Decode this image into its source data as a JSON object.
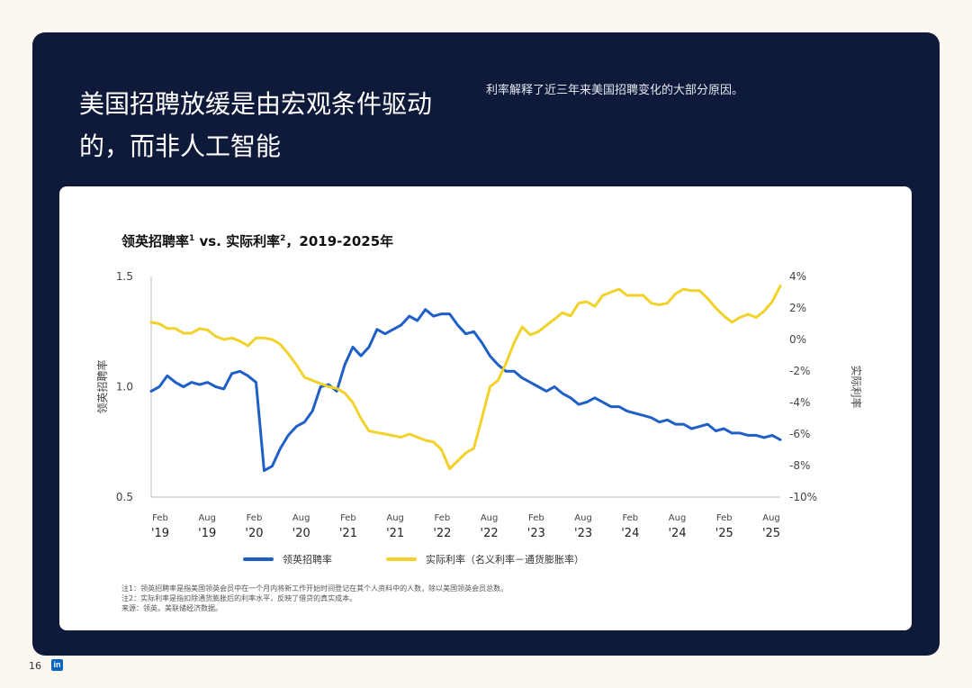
{
  "header": {
    "headline": "美国招聘放缓是由宏观条件驱动的，而非人工智能",
    "subhead": "利率解释了近三年来美国招聘变化的大部分原因。"
  },
  "footer": {
    "page_number": "16",
    "logo_text": "in",
    "note1": "注1：领英招聘率是指美国领英会员中在一个月内将新工作开始时间登记在其个人资料中的人数，除以美国领英会员总数。",
    "note2": "注2：实际利率是指扣除通货膨胀后的利率水平，反映了借贷的真实成本。",
    "source": "来源：领英，美联储经济数据。"
  },
  "chart_data": {
    "type": "line",
    "title": "领英招聘率",
    "title_sup1": "1",
    "title_mid": " vs. 实际利率",
    "title_sup2": "2",
    "title_tail": "，2019-2025年",
    "left_axis": {
      "label": "领英招聘率",
      "ylim": [
        0.5,
        1.5
      ],
      "ticks": [
        "1.5",
        "1.0",
        "0.5"
      ]
    },
    "right_axis": {
      "label": "实际利率",
      "ylim": [
        -10,
        4
      ],
      "ticks": [
        "4%",
        "2%",
        "0%",
        "-2%",
        "-4%",
        "-6%",
        "-8%",
        "-10%"
      ]
    },
    "x_ticks": [
      {
        "month": "Feb",
        "year": "'19"
      },
      {
        "month": "Aug",
        "year": "'19"
      },
      {
        "month": "Feb",
        "year": "'20"
      },
      {
        "month": "Aug",
        "year": "'20"
      },
      {
        "month": "Feb",
        "year": "'21"
      },
      {
        "month": "Aug",
        "year": "'21"
      },
      {
        "month": "Feb",
        "year": "'22"
      },
      {
        "month": "Aug",
        "year": "'22"
      },
      {
        "month": "Feb",
        "year": "'23"
      },
      {
        "month": "Aug",
        "year": "'23"
      },
      {
        "month": "Feb",
        "year": "'24"
      },
      {
        "month": "Aug",
        "year": "'24"
      },
      {
        "month": "Feb",
        "year": "'25"
      },
      {
        "month": "Aug",
        "year": "'25"
      }
    ],
    "series": [
      {
        "name": "领英招聘率",
        "color": "#1f5fc6",
        "axis": "left",
        "values": [
          0.98,
          1.0,
          1.05,
          1.02,
          1.0,
          1.02,
          1.01,
          1.02,
          1.0,
          0.99,
          1.06,
          1.07,
          1.05,
          1.02,
          0.62,
          0.64,
          0.72,
          0.78,
          0.82,
          0.84,
          0.89,
          1.0,
          1.01,
          0.98,
          1.1,
          1.18,
          1.14,
          1.18,
          1.26,
          1.24,
          1.26,
          1.28,
          1.32,
          1.3,
          1.35,
          1.32,
          1.33,
          1.33,
          1.28,
          1.24,
          1.25,
          1.2,
          1.14,
          1.1,
          1.07,
          1.07,
          1.04,
          1.02,
          1.0,
          0.98,
          1.0,
          0.97,
          0.95,
          0.92,
          0.93,
          0.95,
          0.93,
          0.91,
          0.91,
          0.89,
          0.88,
          0.87,
          0.86,
          0.84,
          0.85,
          0.83,
          0.83,
          0.81,
          0.82,
          0.83,
          0.8,
          0.81,
          0.79,
          0.79,
          0.78,
          0.78,
          0.77,
          0.78,
          0.76
        ]
      },
      {
        "name": "实际利率（名义利率－通货膨胀率）",
        "color": "#f2d12a",
        "axis": "right",
        "values": [
          1.1,
          1.0,
          0.7,
          0.7,
          0.4,
          0.4,
          0.7,
          0.6,
          0.2,
          0.0,
          0.1,
          -0.1,
          -0.4,
          0.1,
          0.1,
          0.0,
          -0.3,
          -0.9,
          -1.6,
          -2.4,
          -2.6,
          -2.8,
          -3.0,
          -3.1,
          -3.4,
          -4.0,
          -5.0,
          -5.8,
          -5.9,
          -6.0,
          -6.1,
          -6.2,
          -6.0,
          -6.2,
          -6.4,
          -6.5,
          -7.0,
          -8.2,
          -7.7,
          -7.2,
          -6.9,
          -5.0,
          -3.0,
          -2.6,
          -1.5,
          -0.2,
          0.8,
          0.3,
          0.5,
          0.9,
          1.3,
          1.7,
          1.5,
          2.3,
          2.4,
          2.1,
          2.8,
          3.0,
          3.2,
          2.8,
          2.8,
          2.8,
          2.3,
          2.2,
          2.3,
          2.9,
          3.2,
          3.1,
          3.1,
          2.6,
          2.0,
          1.5,
          1.1,
          1.4,
          1.6,
          1.4,
          1.8,
          2.4,
          3.4
        ]
      }
    ]
  }
}
